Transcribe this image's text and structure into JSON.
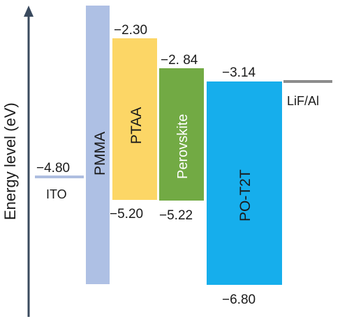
{
  "axis": {
    "label": "Energy level (eV)",
    "color": "#3a4a5e"
  },
  "electrodes": [
    {
      "name": "ITO",
      "level": "−4.80",
      "color": "#aebee0"
    },
    {
      "name": "LiF/Al",
      "color": "#8c8c8c"
    }
  ],
  "layers": [
    {
      "name": "PMMA",
      "color": "#aec0e4",
      "text_color": "#1a1a1a"
    },
    {
      "name": "PTAA",
      "lumo": "−2.30",
      "homo": "−5.20",
      "color": "#fcd666",
      "text_color": "#1a1a1a"
    },
    {
      "name": "Perovskite",
      "lumo": "−2. 84",
      "homo": "−5.22",
      "color": "#72aa44",
      "text_color": "#ffffff"
    },
    {
      "name": "PO-T2T",
      "lumo": "−3.14",
      "homo": "−6.80",
      "color": "#16aeec",
      "text_color": "#1a1a1a"
    }
  ]
}
